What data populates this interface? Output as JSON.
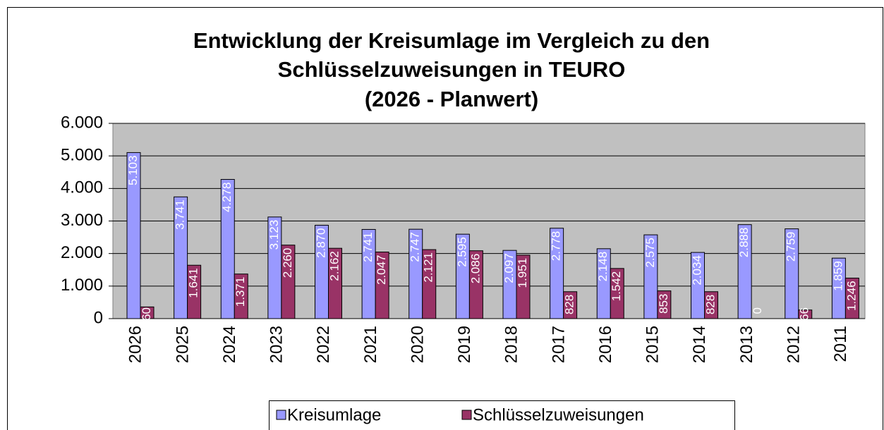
{
  "chart_data": {
    "type": "bar",
    "title": [
      "Entwicklung der Kreisumlage im Vergleich zu den",
      "Schlüsselzuweisungen in TEURO",
      "(2026 - Planwert)"
    ],
    "categories": [
      "2026",
      "2025",
      "2024",
      "2023",
      "2022",
      "2021",
      "2020",
      "2019",
      "2018",
      "2017",
      "2016",
      "2015",
      "2014",
      "2013",
      "2012",
      "2011"
    ],
    "series": [
      {
        "name": "Kreisumlage",
        "color": "#9999ff",
        "values": [
          5103,
          3741,
          4278,
          3123,
          2870,
          2741,
          2747,
          2595,
          2097,
          2778,
          2148,
          2575,
          2034,
          2888,
          2759,
          1859
        ],
        "value_labels": [
          "5.103",
          "3.741",
          "4.278",
          "3.123",
          "2.870",
          "2.741",
          "2.747",
          "2.595",
          "2.097",
          "2.778",
          "2.148",
          "2.575",
          "2.034",
          "2.888",
          "2.759",
          "1.859"
        ]
      },
      {
        "name": "Schlüsselzuweisungen",
        "color": "#993366",
        "values": [
          360,
          1641,
          1371,
          2260,
          2162,
          2047,
          2121,
          2086,
          1951,
          828,
          1542,
          853,
          828,
          0,
          266,
          1246
        ],
        "value_labels": [
          "360",
          "1.641",
          "1.371",
          "2.260",
          "2.162",
          "2.047",
          "2.121",
          "2.086",
          "1.951",
          "828",
          "1.542",
          "853",
          "828",
          "0",
          "266",
          "1.246"
        ]
      }
    ],
    "ylim": [
      0,
      6000
    ],
    "yticks": [
      0,
      {
        "value": 1000,
        "label": "1.000"
      },
      {
        "value": 2000,
        "label": "2.000"
      },
      {
        "value": 3000,
        "label": "3.000"
      },
      {
        "value": 4000,
        "label": "4.000"
      },
      {
        "value": 5000,
        "label": "5.000"
      },
      {
        "value": 6000,
        "label": "6.000"
      }
    ],
    "grid": true,
    "legend": "bottom"
  }
}
